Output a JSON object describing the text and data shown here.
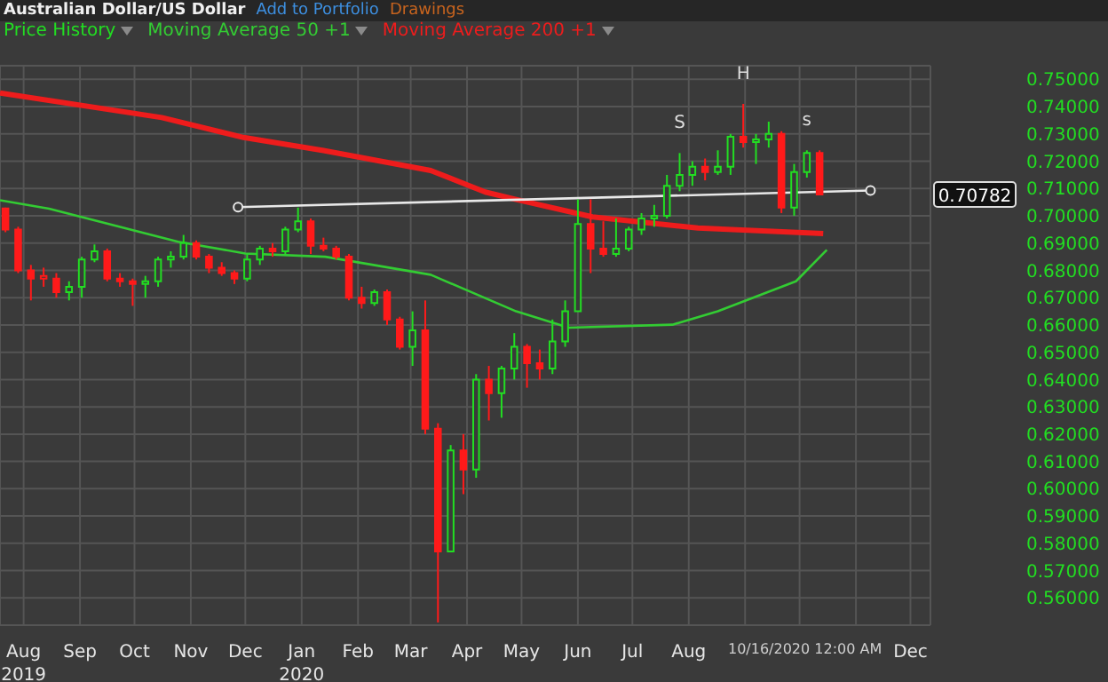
{
  "chart_data": {
    "type": "candlestick",
    "title": "Australian Dollar/US Dollar",
    "annotations": [
      "Add to Portfolio",
      "Drawings",
      {
        "text": "S",
        "x": "2020-07-27",
        "y": 0.723
      },
      {
        "text": "H",
        "x": "2020-08-31",
        "y": 0.741
      },
      {
        "text": "s",
        "x": "2020-10-05",
        "y": 0.724
      },
      "0.70782",
      "10/16/2020 12:00 AM"
    ],
    "series": [
      {
        "name": "Price History",
        "color": "#22dd22",
        "x": [
          "2019-07-22",
          "2019-07-29",
          "2019-08-05",
          "2019-08-12",
          "2019-08-19",
          "2019-08-26",
          "2019-09-02",
          "2019-09-09",
          "2019-09-16",
          "2019-09-23",
          "2019-09-30",
          "2019-10-07",
          "2019-10-14",
          "2019-10-21",
          "2019-10-28",
          "2019-11-04",
          "2019-11-11",
          "2019-11-18",
          "2019-11-25",
          "2019-12-02",
          "2019-12-09",
          "2019-12-16",
          "2019-12-23",
          "2019-12-30",
          "2020-01-06",
          "2020-01-13",
          "2020-01-20",
          "2020-01-27",
          "2020-02-03",
          "2020-02-10",
          "2020-02-17",
          "2020-02-24",
          "2020-03-02",
          "2020-03-09",
          "2020-03-16",
          "2020-03-23",
          "2020-03-30",
          "2020-04-06",
          "2020-04-13",
          "2020-04-20",
          "2020-04-27",
          "2020-05-04",
          "2020-05-11",
          "2020-05-18",
          "2020-05-25",
          "2020-06-01",
          "2020-06-08",
          "2020-06-15",
          "2020-06-22",
          "2020-06-29",
          "2020-07-06",
          "2020-07-13",
          "2020-07-20",
          "2020-07-27",
          "2020-08-03",
          "2020-08-10",
          "2020-08-17",
          "2020-08-24",
          "2020-08-31",
          "2020-09-07",
          "2020-09-14",
          "2020-09-21",
          "2020-09-28",
          "2020-10-05",
          "2020-10-12"
        ],
        "ohlc": [
          [
            0.7027,
            0.703,
            0.694,
            0.695
          ],
          [
            0.695,
            0.696,
            0.679,
            0.68
          ],
          [
            0.68,
            0.682,
            0.669,
            0.677
          ],
          [
            0.677,
            0.681,
            0.674,
            0.678
          ],
          [
            0.677,
            0.679,
            0.67,
            0.672
          ],
          [
            0.672,
            0.676,
            0.669,
            0.674
          ],
          [
            0.674,
            0.685,
            0.67,
            0.684
          ],
          [
            0.684,
            0.6895,
            0.683,
            0.687
          ],
          [
            0.687,
            0.688,
            0.676,
            0.677
          ],
          [
            0.677,
            0.679,
            0.674,
            0.676
          ],
          [
            0.676,
            0.677,
            0.667,
            0.675
          ],
          [
            0.675,
            0.678,
            0.67,
            0.676
          ],
          [
            0.676,
            0.685,
            0.674,
            0.684
          ],
          [
            0.684,
            0.687,
            0.681,
            0.685
          ],
          [
            0.685,
            0.693,
            0.684,
            0.69
          ],
          [
            0.69,
            0.691,
            0.684,
            0.685
          ],
          [
            0.685,
            0.686,
            0.679,
            0.681
          ],
          [
            0.681,
            0.683,
            0.678,
            0.679
          ],
          [
            0.679,
            0.68,
            0.675,
            0.677
          ],
          [
            0.677,
            0.686,
            0.676,
            0.684
          ],
          [
            0.684,
            0.689,
            0.682,
            0.688
          ],
          [
            0.688,
            0.69,
            0.685,
            0.687
          ],
          [
            0.687,
            0.696,
            0.686,
            0.695
          ],
          [
            0.695,
            0.703,
            0.694,
            0.698
          ],
          [
            0.698,
            0.699,
            0.686,
            0.689
          ],
          [
            0.689,
            0.692,
            0.687,
            0.688
          ],
          [
            0.688,
            0.689,
            0.684,
            0.685
          ],
          [
            0.685,
            0.686,
            0.669,
            0.67
          ],
          [
            0.67,
            0.674,
            0.666,
            0.668
          ],
          [
            0.668,
            0.673,
            0.667,
            0.672
          ],
          [
            0.672,
            0.673,
            0.66,
            0.662
          ],
          [
            0.662,
            0.663,
            0.651,
            0.652
          ],
          [
            0.652,
            0.665,
            0.645,
            0.658
          ],
          [
            0.658,
            0.669,
            0.62,
            0.622
          ],
          [
            0.622,
            0.624,
            0.551,
            0.577
          ],
          [
            0.577,
            0.616,
            0.577,
            0.614
          ],
          [
            0.614,
            0.62,
            0.598,
            0.607
          ],
          [
            0.607,
            0.642,
            0.604,
            0.64
          ],
          [
            0.64,
            0.645,
            0.625,
            0.635
          ],
          [
            0.635,
            0.645,
            0.626,
            0.644
          ],
          [
            0.644,
            0.657,
            0.64,
            0.652
          ],
          [
            0.652,
            0.653,
            0.637,
            0.646
          ],
          [
            0.646,
            0.651,
            0.64,
            0.644
          ],
          [
            0.644,
            0.662,
            0.642,
            0.654
          ],
          [
            0.654,
            0.669,
            0.652,
            0.665
          ],
          [
            0.665,
            0.706,
            0.665,
            0.697
          ],
          [
            0.697,
            0.706,
            0.679,
            0.688
          ],
          [
            0.688,
            0.698,
            0.685,
            0.686
          ],
          [
            0.686,
            0.699,
            0.685,
            0.688
          ],
          [
            0.688,
            0.696,
            0.687,
            0.695
          ],
          [
            0.695,
            0.701,
            0.693,
            0.699
          ],
          [
            0.699,
            0.704,
            0.696,
            0.7
          ],
          [
            0.7,
            0.715,
            0.699,
            0.711
          ],
          [
            0.711,
            0.723,
            0.709,
            0.715
          ],
          [
            0.715,
            0.72,
            0.711,
            0.718
          ],
          [
            0.718,
            0.721,
            0.713,
            0.716
          ],
          [
            0.716,
            0.724,
            0.715,
            0.718
          ],
          [
            0.718,
            0.73,
            0.715,
            0.729
          ],
          [
            0.729,
            0.741,
            0.725,
            0.727
          ],
          [
            0.727,
            0.73,
            0.719,
            0.728
          ],
          [
            0.728,
            0.7345,
            0.725,
            0.73
          ],
          [
            0.73,
            0.731,
            0.701,
            0.703
          ],
          [
            0.703,
            0.719,
            0.7,
            0.716
          ],
          [
            0.716,
            0.724,
            0.714,
            0.723
          ],
          [
            0.723,
            0.724,
            0.7075,
            0.70782
          ]
        ],
        "colors": [
          "#ff1a1a",
          "#ff1a1a",
          "#ff1a1a",
          "#ff1a1a",
          "#ff1a1a",
          "#22dd22",
          "#22dd22",
          "#22dd22",
          "#ff1a1a",
          "#ff1a1a",
          "#ff1a1a",
          "#22dd22",
          "#22dd22",
          "#22dd22",
          "#22dd22",
          "#ff1a1a",
          "#ff1a1a",
          "#ff1a1a",
          "#ff1a1a",
          "#22dd22",
          "#22dd22",
          "#ff1a1a",
          "#22dd22",
          "#22dd22",
          "#ff1a1a",
          "#ff1a1a",
          "#ff1a1a",
          "#ff1a1a",
          "#ff1a1a",
          "#22dd22",
          "#ff1a1a",
          "#ff1a1a",
          "#22dd22",
          "#ff1a1a",
          "#ff1a1a",
          "#22dd22",
          "#ff1a1a",
          "#22dd22",
          "#ff1a1a",
          "#22dd22",
          "#22dd22",
          "#ff1a1a",
          "#ff1a1a",
          "#22dd22",
          "#22dd22",
          "#22dd22",
          "#ff1a1a",
          "#ff1a1a",
          "#22dd22",
          "#22dd22",
          "#22dd22",
          "#22dd22",
          "#22dd22",
          "#22dd22",
          "#22dd22",
          "#ff1a1a",
          "#22dd22",
          "#22dd22",
          "#ff1a1a",
          "#22dd22",
          "#22dd22",
          "#ff1a1a",
          "#22dd22",
          "#22dd22",
          "#ff1a1a"
        ]
      },
      {
        "name": "Moving Average 50 +1",
        "type": "line",
        "color": "#33cc33",
        "x": [
          "2019-07-19",
          "2019-08-15",
          "2019-10-25",
          "2019-12-01",
          "2020-01-14",
          "2020-03-12",
          "2020-04-28",
          "2020-05-27",
          "2020-07-23",
          "2020-08-17",
          "2020-09-29",
          "2020-10-16"
        ],
        "values": [
          0.7057,
          0.7026,
          0.6905,
          0.6862,
          0.685,
          0.6784,
          0.665,
          0.659,
          0.6601,
          0.665,
          0.676,
          0.6875
        ]
      },
      {
        "name": "Moving Average 200 +1",
        "type": "line",
        "color": "#ee1c1c",
        "x": [
          "2019-07-19",
          "2019-10-16",
          "2019-11-30",
          "2020-01-13",
          "2020-03-12",
          "2020-04-11",
          "2020-04-28",
          "2020-06-09",
          "2020-08-06",
          "2020-10-14"
        ],
        "values": [
          0.745,
          0.736,
          0.7287,
          0.7239,
          0.7166,
          0.7087,
          0.706,
          0.6996,
          0.6955,
          0.6935
        ]
      },
      {
        "type": "line",
        "color": "#e8e8e8",
        "marker": "circle",
        "x": [
          "2019-11-27",
          "2020-11-09"
        ],
        "values": [
          0.7032,
          0.7093
        ]
      }
    ],
    "xlim": [
      "2019-07-19",
      "2020-12-12"
    ],
    "xticks": [
      {
        "value": "2019-08-01",
        "label": "Aug\n2019"
      },
      {
        "value": "2019-09-01",
        "label": "Sep"
      },
      {
        "value": "2019-10-01",
        "label": "Oct"
      },
      {
        "value": "2019-11-01",
        "label": "Nov"
      },
      {
        "value": "2019-12-01",
        "label": "Dec"
      },
      {
        "value": "2020-01-01",
        "label": "Jan\n2020"
      },
      {
        "value": "2020-02-01",
        "label": "Feb"
      },
      {
        "value": "2020-03-01",
        "label": "Mar"
      },
      {
        "value": "2020-04-01",
        "label": "Apr"
      },
      {
        "value": "2020-05-01",
        "label": "May"
      },
      {
        "value": "2020-06-01",
        "label": "Jun"
      },
      {
        "value": "2020-07-01",
        "label": "Jul"
      },
      {
        "value": "2020-08-01",
        "label": "Aug"
      },
      {
        "value": "2020-09-01",
        "label": null
      },
      {
        "value": "2020-10-01",
        "label": null
      },
      {
        "value": "2020-11-01",
        "label": null
      },
      {
        "value": "2020-12-01",
        "label": "Dec"
      }
    ],
    "ylim": [
      0.55,
      0.755
    ],
    "yticks": [
      {
        "value": 0.56,
        "label": "0.56000"
      },
      {
        "value": 0.57,
        "label": "0.57000"
      },
      {
        "value": 0.58,
        "label": "0.58000"
      },
      {
        "value": 0.59,
        "label": "0.59000"
      },
      {
        "value": 0.6,
        "label": "0.60000"
      },
      {
        "value": 0.61,
        "label": "0.61000"
      },
      {
        "value": 0.62,
        "label": "0.62000"
      },
      {
        "value": 0.63,
        "label": "0.63000"
      },
      {
        "value": 0.64,
        "label": "0.64000"
      },
      {
        "value": 0.65,
        "label": "0.65000"
      },
      {
        "value": 0.66,
        "label": "0.66000"
      },
      {
        "value": 0.67,
        "label": "0.67000"
      },
      {
        "value": 0.68,
        "label": "0.68000"
      },
      {
        "value": 0.69,
        "label": "0.69000"
      },
      {
        "value": 0.7,
        "label": "0.70000"
      },
      {
        "value": 0.71,
        "label": "0.71000"
      },
      {
        "value": 0.72,
        "label": "0.72000"
      },
      {
        "value": 0.73,
        "label": "0.73000"
      },
      {
        "value": 0.74,
        "label": "0.74000"
      },
      {
        "value": 0.75,
        "label": "0.75000"
      }
    ],
    "grid": true,
    "legend": "top left",
    "marker": "none",
    "line_style": "solid"
  }
}
